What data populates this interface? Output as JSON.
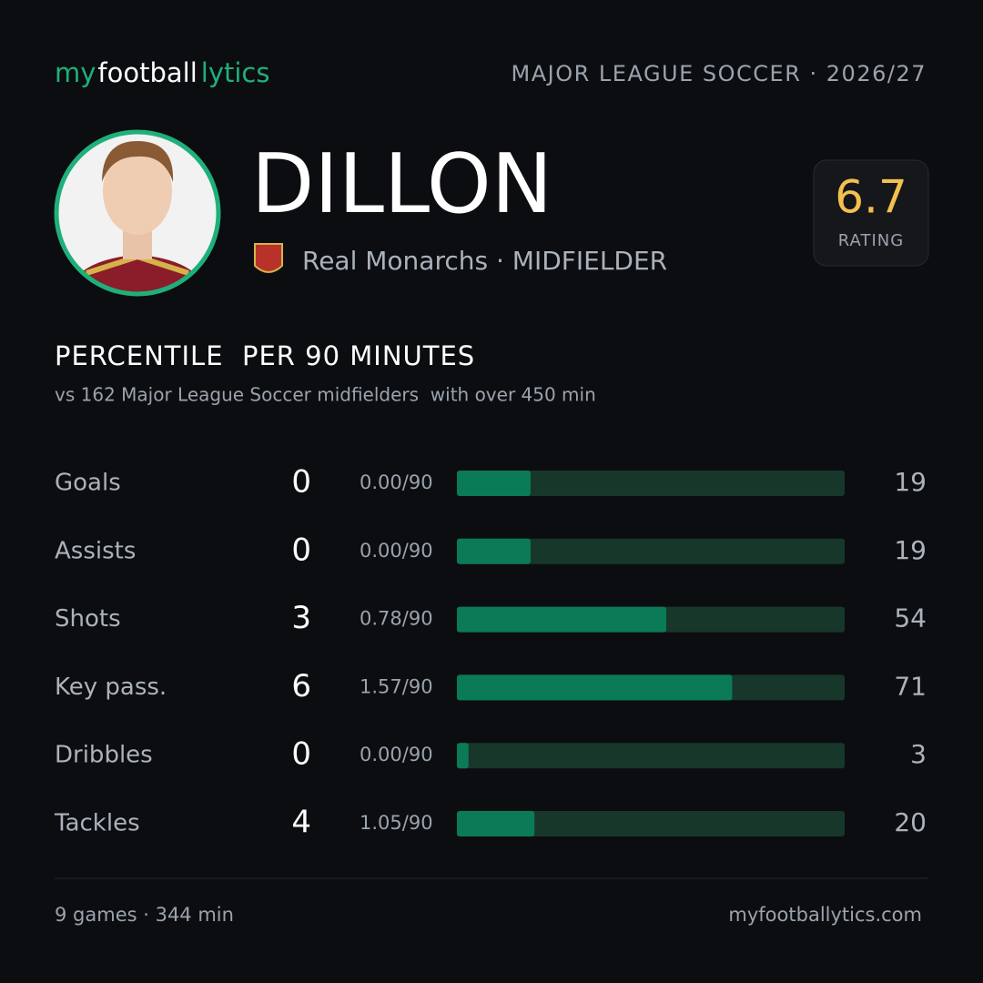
{
  "header": {
    "logo": [
      "my",
      "football",
      "lytics"
    ],
    "league": "MAJOR LEAGUE SOCCER · 2026/27"
  },
  "player": {
    "name": "DILLON",
    "team_position": "Real Monarchs · MIDFIELDER",
    "rating": 6.7,
    "rating_label": "RATING"
  },
  "section": {
    "title": "PERCENTILE  PER 90 MINUTES",
    "subtitle": "vs 162 Major League Soccer midfielders  with over 450 min"
  },
  "stats": [
    {
      "label": "Goals",
      "total": 0,
      "per90": "0.00/90",
      "percentile": 19
    },
    {
      "label": "Assists",
      "total": 0,
      "per90": "0.00/90",
      "percentile": 19
    },
    {
      "label": "Shots",
      "total": 3,
      "per90": "0.78/90",
      "percentile": 54
    },
    {
      "label": "Key pass.",
      "total": 6,
      "per90": "1.57/90",
      "percentile": 71
    },
    {
      "label": "Dribbles",
      "total": 0,
      "per90": "0.00/90",
      "percentile": 3
    },
    {
      "label": "Tackles",
      "total": 4,
      "per90": "1.05/90",
      "percentile": 20
    }
  ],
  "footer": {
    "summary": "9 games · 344 min",
    "site": "myfootballytics.com"
  }
}
